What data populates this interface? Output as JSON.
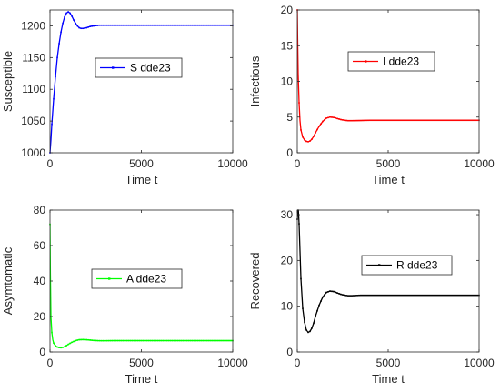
{
  "chart_data": [
    {
      "type": "line",
      "xlabel": "Time t",
      "ylabel": "Susceptible",
      "xlim": [
        0,
        10000
      ],
      "ylim": [
        1000,
        1225
      ],
      "xticks": [
        "0",
        "5000",
        "10000"
      ],
      "yticks": [
        "1000",
        "1050",
        "1100",
        "1150",
        "1200"
      ],
      "ytick_values": [
        1000,
        1050,
        1100,
        1150,
        1200
      ],
      "xtick_values": [
        0,
        5000,
        10000
      ],
      "grid": false,
      "legend_placement": "center",
      "series": [
        {
          "name": "S dde23",
          "color": "#0000ff",
          "x": [
            0,
            50,
            100,
            200,
            300,
            400,
            500,
            600,
            700,
            800,
            900,
            1000,
            1100,
            1200,
            1300,
            1400,
            1500,
            1600,
            1700,
            1800,
            2000,
            2200,
            2400,
            2700,
            3000,
            3500,
            4000,
            5000,
            6000,
            7000,
            8000,
            9000,
            10000
          ],
          "y": [
            1000,
            1020,
            1045,
            1085,
            1120,
            1150,
            1172,
            1190,
            1204,
            1214,
            1220,
            1222,
            1220,
            1215,
            1209,
            1204,
            1200,
            1197,
            1196,
            1196,
            1197,
            1199,
            1200,
            1201,
            1201,
            1201,
            1201,
            1201,
            1201,
            1201,
            1201,
            1201,
            1201
          ]
        }
      ]
    },
    {
      "type": "line",
      "xlabel": "Time t",
      "ylabel": "Infectious",
      "xlim": [
        0,
        10000
      ],
      "ylim": [
        0,
        20
      ],
      "xticks": [
        "0",
        "5000",
        "10000"
      ],
      "yticks": [
        "0",
        "5",
        "10",
        "15",
        "20"
      ],
      "ytick_values": [
        0,
        5,
        10,
        15,
        20
      ],
      "xtick_values": [
        0,
        5000,
        10000
      ],
      "grid": false,
      "legend_placement": "center",
      "series": [
        {
          "name": "I dde23",
          "color": "#ff0000",
          "x": [
            0,
            20,
            50,
            100,
            150,
            200,
            300,
            400,
            500,
            600,
            700,
            800,
            900,
            1000,
            1200,
            1400,
            1600,
            1800,
            2000,
            2200,
            2400,
            2600,
            2800,
            3000,
            3500,
            4000,
            5000,
            6000,
            7000,
            8000,
            9000,
            10000
          ],
          "y": [
            20,
            16,
            11,
            7,
            4.5,
            3.2,
            2.2,
            1.8,
            1.6,
            1.55,
            1.65,
            1.9,
            2.3,
            2.8,
            3.7,
            4.4,
            4.85,
            5.0,
            4.95,
            4.8,
            4.65,
            4.55,
            4.5,
            4.5,
            4.52,
            4.55,
            4.55,
            4.55,
            4.55,
            4.55,
            4.55,
            4.55
          ]
        }
      ]
    },
    {
      "type": "line",
      "xlabel": "Time t",
      "ylabel": "Asymtomatic",
      "xlim": [
        0,
        10000
      ],
      "ylim": [
        0,
        80
      ],
      "xticks": [
        "0",
        "5000",
        "10000"
      ],
      "yticks": [
        "0",
        "20",
        "40",
        "60",
        "80"
      ],
      "ytick_values": [
        0,
        20,
        40,
        60,
        80
      ],
      "xtick_values": [
        0,
        5000,
        10000
      ],
      "grid": false,
      "legend_placement": "center",
      "series": [
        {
          "name": "A dde23",
          "color": "#00ff00",
          "x": [
            0,
            20,
            50,
            100,
            150,
            200,
            300,
            400,
            500,
            600,
            700,
            800,
            900,
            1000,
            1200,
            1400,
            1600,
            1800,
            2000,
            2200,
            2400,
            2600,
            2800,
            3000,
            3500,
            4000,
            5000,
            6000,
            7000,
            8000,
            9000,
            10000
          ],
          "y": [
            72,
            45,
            20,
            11,
            7,
            5,
            3.5,
            2.8,
            2.5,
            2.4,
            2.6,
            3.0,
            3.6,
            4.3,
            5.5,
            6.4,
            6.9,
            7.0,
            6.9,
            6.7,
            6.5,
            6.4,
            6.35,
            6.35,
            6.4,
            6.4,
            6.4,
            6.4,
            6.4,
            6.4,
            6.4,
            6.4
          ]
        }
      ]
    },
    {
      "type": "line",
      "xlabel": "Time t",
      "ylabel": "Recovered",
      "xlim": [
        0,
        10000
      ],
      "ylim": [
        0,
        31
      ],
      "xticks": [
        "0",
        "5000",
        "10000"
      ],
      "yticks": [
        "0",
        "10",
        "20",
        "30"
      ],
      "ytick_values": [
        0,
        10,
        20,
        30
      ],
      "xtick_values": [
        0,
        5000,
        10000
      ],
      "grid": false,
      "legend_placement": "center",
      "series": [
        {
          "name": "R dde23",
          "color": "#000000",
          "x": [
            0,
            30,
            60,
            100,
            150,
            200,
            300,
            400,
            500,
            600,
            700,
            800,
            900,
            1000,
            1200,
            1400,
            1600,
            1800,
            2000,
            2200,
            2400,
            2600,
            2800,
            3000,
            3500,
            4000,
            5000,
            6000,
            7000,
            8000,
            9000,
            10000
          ],
          "y": [
            29,
            31,
            31,
            28,
            22,
            16,
            9.5,
            6.5,
            4.8,
            4.3,
            4.5,
            5.2,
            6.3,
            7.8,
            10.2,
            12.0,
            13.0,
            13.3,
            13.2,
            12.9,
            12.6,
            12.4,
            12.3,
            12.3,
            12.4,
            12.4,
            12.4,
            12.4,
            12.4,
            12.4,
            12.4,
            12.4
          ]
        }
      ]
    }
  ]
}
